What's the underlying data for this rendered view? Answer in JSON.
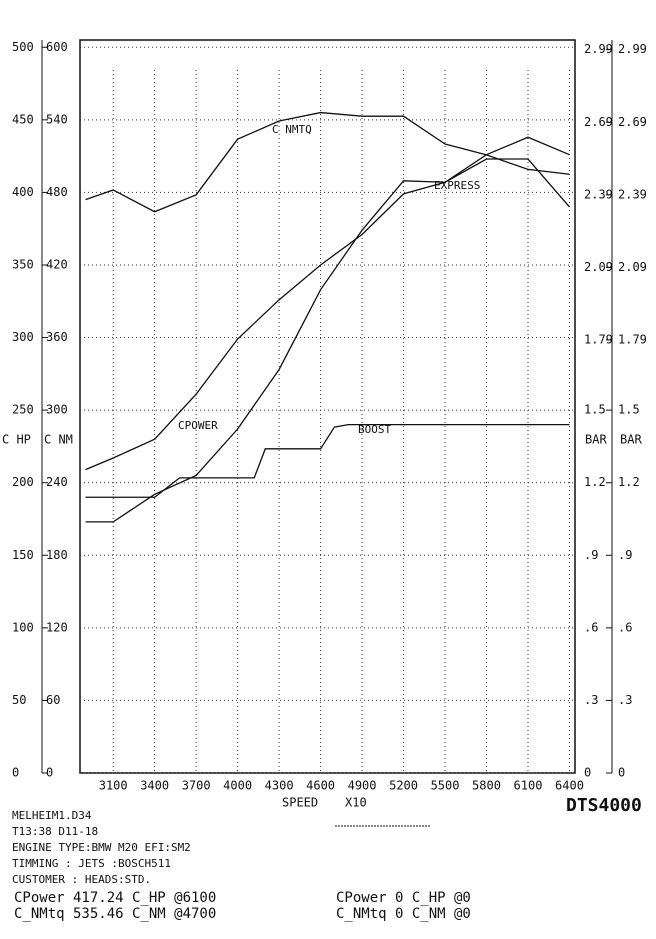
{
  "chart_data": {
    "type": "line",
    "x_label": "SPEED",
    "x_unit": "X10",
    "y_label": "C HP",
    "y2_label": "C NM",
    "y3_label": "BAR",
    "y4_label": "BAR",
    "xlim": [
      2860,
      6440
    ],
    "xticks": [
      3100,
      3400,
      3700,
      4000,
      4300,
      4600,
      4900,
      5200,
      5500,
      5800,
      6100,
      6400
    ],
    "ylim": [
      0,
      505
    ],
    "yticks": [
      0,
      50,
      100,
      150,
      200,
      250,
      300,
      350,
      400,
      450,
      500
    ],
    "y2lim": [
      0,
      606
    ],
    "y2ticks": [
      0,
      60,
      120,
      180,
      240,
      300,
      360,
      420,
      480,
      540,
      600
    ],
    "y3lim": [
      0,
      3.03
    ],
    "y3ticks": [
      0,
      {
        "value": 0.3,
        "label": ".3"
      },
      {
        "value": 0.6,
        "label": ".6"
      },
      {
        "value": 0.9,
        "label": ".9"
      },
      1.2,
      1.5,
      1.79,
      2.09,
      2.39,
      2.69,
      2.99
    ],
    "grid": true,
    "series": [
      {
        "name": "CPOWER",
        "color": "#111",
        "axis": "y",
        "x": [
          2900,
          3100,
          3400,
          3700,
          4000,
          4300,
          4600,
          4900,
          5200,
          5500,
          5800,
          6100,
          6400
        ],
        "values": [
          209,
          217,
          230,
          261,
          299,
          326,
          350,
          371,
          399,
          407,
          423,
          423,
          390
        ]
      },
      {
        "name": "EXPRESS",
        "color": "#111",
        "axis": "y",
        "x": [
          2900,
          3100,
          3400,
          3700,
          4000,
          4300,
          4600,
          4900,
          5200,
          5500,
          5800,
          6100,
          6400
        ],
        "values": [
          173,
          173,
          192,
          205,
          237,
          278,
          333,
          374,
          408,
          407,
          426,
          438,
          426
        ]
      },
      {
        "name": "BOOST",
        "color": "#111",
        "axis": "y3",
        "x": [
          2900,
          3400,
          3580,
          4120,
          4200,
          4600,
          4700,
          4800,
          6400
        ],
        "values": [
          1.14,
          1.14,
          1.22,
          1.22,
          1.34,
          1.34,
          1.43,
          1.44,
          1.44
        ]
      },
      {
        "name": "C NMTQ",
        "color": "#111",
        "axis": "y2",
        "x": [
          2900,
          3100,
          3400,
          3700,
          4000,
          4300,
          4600,
          4900,
          5200,
          5500,
          5800,
          6100,
          6400
        ],
        "values": [
          474,
          482,
          464,
          478,
          524,
          539,
          546,
          543,
          543,
          520,
          511,
          499,
          495
        ]
      }
    ]
  },
  "footer": {
    "brand": "DTS4000",
    "lines": [
      "MELHEIM1.D34",
      "T13:38 D11-18",
      "ENGINE TYPE:BMW M20  EFI:SM2",
      "TIMMING   :          JETS :BOSCH511",
      "CUSTOMER  :          HEADS:STD."
    ],
    "results_left": [
      "CPower 417.24 C_HP @6100",
      "C_NMtq 535.46 C_NM @4700"
    ],
    "results_right": [
      "CPower 0 C_HP @0",
      "C_NMtq 0 C_NM @0"
    ]
  }
}
